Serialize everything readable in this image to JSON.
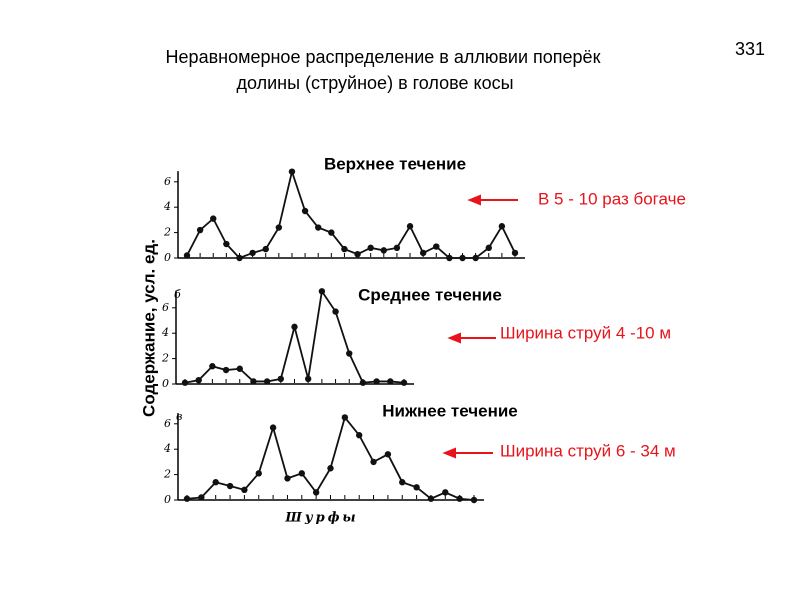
{
  "page_number": "331",
  "title_lines": [
    "Неравномерное распределение в аллювии поперёк",
    "долины (струйное) в голове косы"
  ],
  "y_label": "Содержание, усл. ед.",
  "x_label": "Шурфы",
  "chart_data": [
    {
      "type": "line",
      "title": "Верхнее течение",
      "annotation": "В  5 - 10 раз богаче",
      "ylim": [
        0,
        7
      ],
      "yticks": [
        0,
        2,
        4,
        6
      ],
      "series": [
        {
          "color": "#111111",
          "values": [
            0.2,
            2.2,
            3.1,
            1.1,
            0,
            0.4,
            0.7,
            2.4,
            6.8,
            3.7,
            2.4,
            2.0,
            0.7,
            0.3,
            0.8,
            0.6,
            0.8,
            2.5,
            0.4,
            0.9,
            0,
            0,
            0,
            0.8,
            2.5,
            0.4
          ]
        }
      ]
    },
    {
      "type": "line",
      "title": "Среднее течение",
      "annotation": "Ширина струй 4 -10 м",
      "panel": "б",
      "ylim": [
        0,
        7.5
      ],
      "yticks": [
        0,
        2,
        4,
        6
      ],
      "series": [
        {
          "color": "#111111",
          "values": [
            0.1,
            0.3,
            1.4,
            1.1,
            1.2,
            0.2,
            0.2,
            0.4,
            4.5,
            0.4,
            7.3,
            5.7,
            2.4,
            0.1,
            0.2,
            0.2,
            0.1
          ]
        }
      ]
    },
    {
      "type": "line",
      "title": "Нижнее течение",
      "annotation": "Ширина струй 6 - 34 м",
      "panel": "в",
      "ylim": [
        0,
        7
      ],
      "yticks": [
        0,
        2,
        4,
        6
      ],
      "series": [
        {
          "color": "#111111",
          "values": [
            0.1,
            0.2,
            1.4,
            1.1,
            0.8,
            2.1,
            5.7,
            1.7,
            2.1,
            0.6,
            2.5,
            6.5,
            5.1,
            3.0,
            3.6,
            1.4,
            1.0,
            0.1,
            0.6,
            0.1,
            0
          ]
        }
      ]
    }
  ]
}
